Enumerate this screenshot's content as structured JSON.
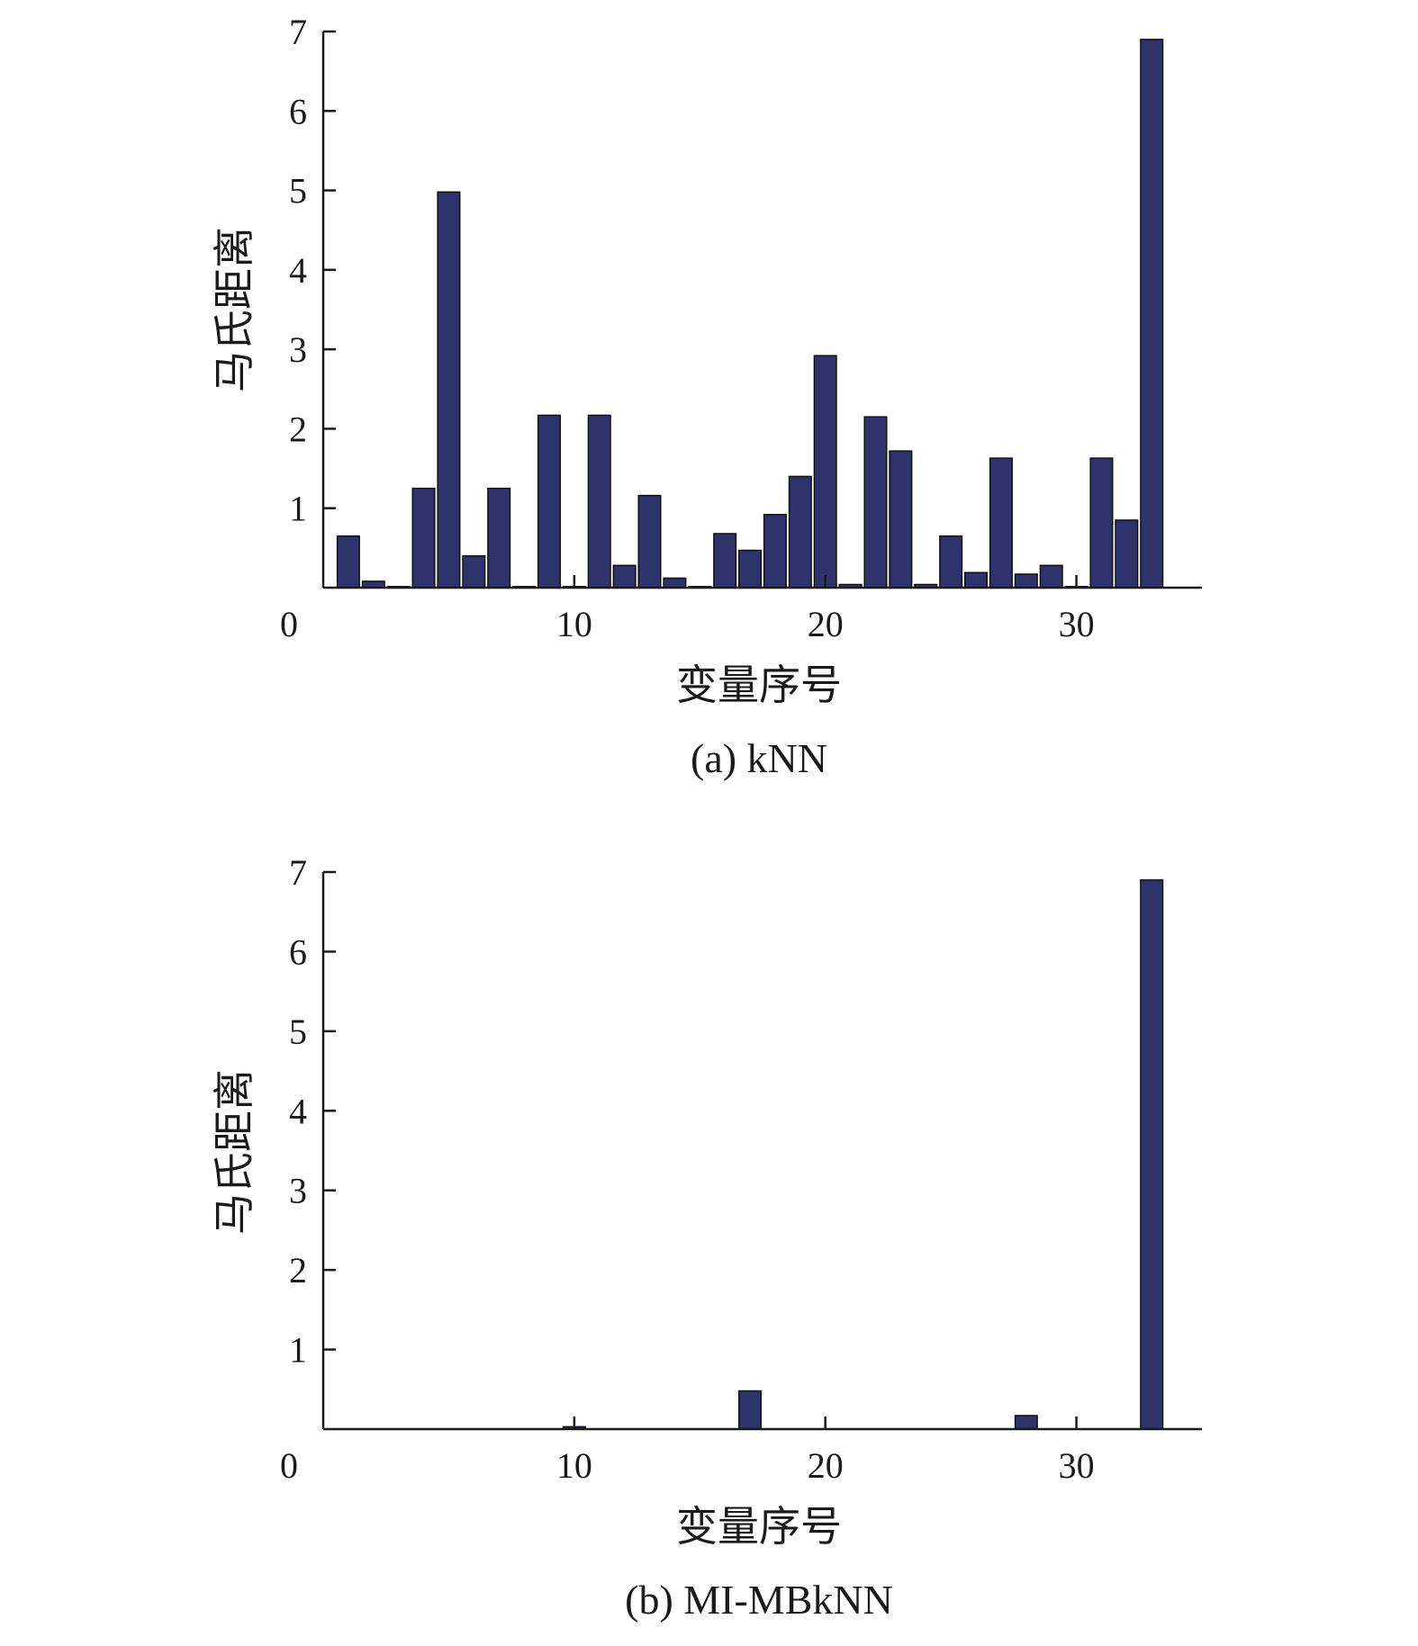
{
  "colors": {
    "bar": "#2e346b",
    "axis": "#1a1a1a"
  },
  "chart_data": [
    {
      "type": "bar",
      "caption": "(a) kNN",
      "xlabel": "变量序号",
      "ylabel": "马氏距离",
      "xlim": [
        0,
        35
      ],
      "ylim": [
        0,
        7
      ],
      "xticks": [
        0,
        10,
        20,
        30
      ],
      "yticks": [
        1,
        2,
        3,
        4,
        5,
        6,
        7
      ],
      "x": [
        1,
        2,
        3,
        4,
        5,
        6,
        7,
        8,
        9,
        10,
        11,
        12,
        13,
        14,
        15,
        16,
        17,
        18,
        19,
        20,
        21,
        22,
        23,
        24,
        25,
        26,
        27,
        28,
        29,
        30,
        31,
        32,
        33
      ],
      "values": [
        0.65,
        0.08,
        0.01,
        1.25,
        4.98,
        0.4,
        1.25,
        0.01,
        2.17,
        0.01,
        2.17,
        0.28,
        1.16,
        0.12,
        0.01,
        0.68,
        0.47,
        0.92,
        1.4,
        2.92,
        0.04,
        2.15,
        1.72,
        0.04,
        0.65,
        0.19,
        1.63,
        0.17,
        0.28,
        0.01,
        1.63,
        0.85,
        6.9
      ]
    },
    {
      "type": "bar",
      "caption": "(b) MI-MBkNN",
      "xlabel": "变量序号",
      "ylabel": "马氏距离",
      "xlim": [
        0,
        35
      ],
      "ylim": [
        0,
        7
      ],
      "xticks": [
        0,
        10,
        20,
        30
      ],
      "yticks": [
        1,
        2,
        3,
        4,
        5,
        6,
        7
      ],
      "x": [
        10,
        17,
        28,
        33
      ],
      "values": [
        0.03,
        0.48,
        0.17,
        6.9
      ]
    }
  ]
}
